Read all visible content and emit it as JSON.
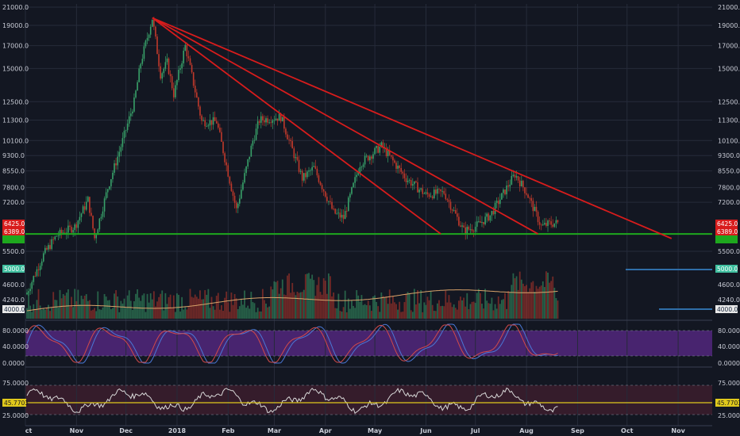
{
  "colors": {
    "background": "#131722",
    "grid": "#262b3a",
    "candle_up": "#38a169",
    "candle_down": "#c0392b",
    "trendline": "#d81c1c",
    "support": "#1ea81e",
    "stoch_band": "#5b2a8a",
    "rsi_band": "#3a1d2c",
    "rsi_line": "#d7d7d7",
    "ma": "#d9a36a",
    "hline_blue": "#2f6ea8",
    "badge_red": "#d81c1c",
    "badge_green": "#1ea81e",
    "badge_teal": "#3fbf9f",
    "badge_white": "#e8e8e8",
    "badge_yellow": "#e0c91c"
  },
  "chart_data": {
    "type": "candlestick",
    "price_axis": {
      "scale": "log",
      "ticks": [
        "21000.0",
        "19000.0",
        "17000.0",
        "15000.0",
        "12500.0",
        "11300.0",
        "10100.0",
        "9300.0",
        "8550.0",
        "7800.0",
        "7200.0",
        "5500.0",
        "5000.0",
        "4600.0",
        "4240.0",
        "4000.0"
      ],
      "tick_values": [
        21000,
        19000,
        17000,
        15000,
        12500,
        11300,
        10100,
        9300,
        8550,
        7800,
        7200,
        5500,
        5000,
        4600,
        4240,
        4000
      ]
    },
    "x_axis": {
      "ticks": [
        "ct",
        "Nov",
        "Dec",
        "2018",
        "Feb",
        "Mar",
        "Apr",
        "May",
        "Jun",
        "Jul",
        "Aug",
        "Sep",
        "Oct",
        "Nov"
      ]
    },
    "price_badges_left": [
      "6425.0",
      "6389.0",
      "5000.0",
      "4000.0"
    ],
    "price_badges_right": [
      "6425.0",
      "6389.0",
      "5000.0",
      "4000.0"
    ],
    "path_points": [
      [
        "2017-10-01",
        4300
      ],
      [
        "2017-10-12",
        5400
      ],
      [
        "2017-10-20",
        6000
      ],
      [
        "2017-10-31",
        6300
      ],
      [
        "2017-11-08",
        7300
      ],
      [
        "2017-11-12",
        5900
      ],
      [
        "2017-11-20",
        7800
      ],
      [
        "2017-11-28",
        9800
      ],
      [
        "2017-12-06",
        12500
      ],
      [
        "2017-12-10",
        15500
      ],
      [
        "2017-12-17",
        19800
      ],
      [
        "2017-12-22",
        14500
      ],
      [
        "2017-12-26",
        15500
      ],
      [
        "2017-12-30",
        13000
      ],
      [
        "2018-01-06",
        17000
      ],
      [
        "2018-01-16",
        11200
      ],
      [
        "2018-01-25",
        11200
      ],
      [
        "2018-02-06",
        6900
      ],
      [
        "2018-02-16",
        10100
      ],
      [
        "2018-02-20",
        11300
      ],
      [
        "2018-03-05",
        11500
      ],
      [
        "2018-03-18",
        8200
      ],
      [
        "2018-03-25",
        8700
      ],
      [
        "2018-04-06",
        6800
      ],
      [
        "2018-04-12",
        6600
      ],
      [
        "2018-04-22",
        8900
      ],
      [
        "2018-05-05",
        9800
      ],
      [
        "2018-05-20",
        8200
      ],
      [
        "2018-06-01",
        7500
      ],
      [
        "2018-06-12",
        7600
      ],
      [
        "2018-06-24",
        6150
      ],
      [
        "2018-07-01",
        6300
      ],
      [
        "2018-07-10",
        6700
      ],
      [
        "2018-07-25",
        8400
      ],
      [
        "2018-08-01",
        7600
      ],
      [
        "2018-08-10",
        6300
      ],
      [
        "2018-08-15",
        6400
      ],
      [
        "2018-08-20",
        6425
      ]
    ],
    "trendlines": [
      {
        "from": [
          "2017-12-17",
          19800
        ],
        "to": [
          "2018-10-28",
          5900
        ]
      },
      {
        "from": [
          "2017-12-17",
          19800
        ],
        "to": [
          "2018-08-08",
          6050
        ]
      },
      {
        "from": [
          "2017-12-17",
          19800
        ],
        "to": [
          "2018-06-10",
          6050
        ]
      }
    ],
    "support_level": 6050,
    "volume": {
      "hlines": [
        5000,
        4000
      ],
      "indicator": "Volume with moving average"
    },
    "stochastic": {
      "ticks": [
        "80.0000",
        "40.0000",
        "0.0000"
      ],
      "tick_values": [
        80,
        40,
        0
      ]
    },
    "rsi": {
      "ticks": [
        "75.0000",
        "45.7703",
        "25.0000"
      ],
      "tick_values": [
        75,
        45.7703,
        25
      ],
      "current": "45.7703"
    }
  }
}
